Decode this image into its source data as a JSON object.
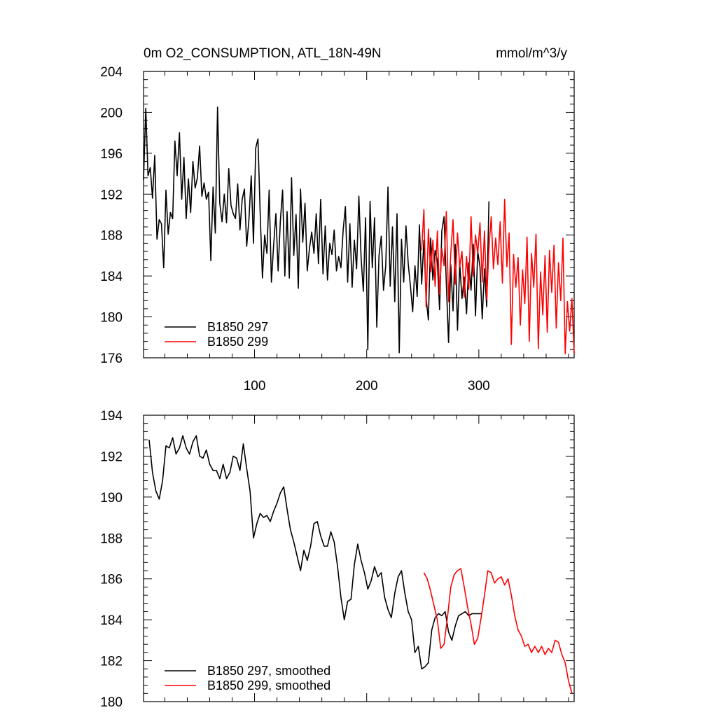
{
  "colors": {
    "series_297": "#000000",
    "series_299": "#ff0000"
  },
  "chart_data": [
    {
      "type": "line",
      "title": "0m O2_CONSUMPTION, ATL_18N-49N",
      "units": "mmol/m^3/y",
      "xlim": [
        1,
        385
      ],
      "ylim": [
        176,
        204
      ],
      "xticks": [
        100,
        200,
        300
      ],
      "xtick_labels": [
        "100",
        "200",
        "300"
      ],
      "yticks": [
        176,
        180,
        184,
        188,
        192,
        196,
        200,
        204
      ],
      "ytick_labels": [
        "176",
        "180",
        "184",
        "188",
        "192",
        "196",
        "200",
        "204"
      ],
      "grid": false,
      "legend_position": "bottom-left",
      "series": [
        {
          "name": "B1850 297",
          "color": "#000000",
          "x": [
            1,
            3,
            5,
            7,
            9,
            11,
            13,
            15,
            17,
            19,
            21,
            23,
            25,
            27,
            29,
            31,
            33,
            35,
            37,
            39,
            41,
            43,
            45,
            47,
            49,
            51,
            53,
            55,
            57,
            59,
            61,
            63,
            65,
            67,
            69,
            71,
            73,
            75,
            77,
            79,
            81,
            83,
            85,
            87,
            89,
            91,
            93,
            95,
            97,
            99,
            101,
            103,
            105,
            107,
            109,
            111,
            113,
            115,
            117,
            119,
            121,
            123,
            125,
            127,
            129,
            131,
            133,
            135,
            137,
            139,
            141,
            143,
            145,
            147,
            149,
            151,
            153,
            155,
            157,
            159,
            161,
            163,
            165,
            167,
            169,
            171,
            173,
            175,
            177,
            179,
            181,
            183,
            185,
            187,
            189,
            191,
            193,
            195,
            197,
            199,
            201,
            203,
            205,
            207,
            209,
            211,
            213,
            215,
            217,
            219,
            221,
            223,
            225,
            227,
            229,
            231,
            233,
            235,
            237,
            239,
            241,
            243,
            245,
            247,
            249,
            251,
            253,
            255,
            257,
            259,
            261,
            263,
            265,
            267,
            269,
            271,
            273,
            275,
            277,
            279,
            281,
            283,
            285,
            287,
            289,
            291,
            293,
            295,
            297,
            299,
            301,
            303,
            305,
            307,
            309
          ],
          "values": [
            193.4,
            200.4,
            193.8,
            194.6,
            191.6,
            195.8,
            187.6,
            189.5,
            189.1,
            184.8,
            192.4,
            188.1,
            190.2,
            189.6,
            197.2,
            193.8,
            198.0,
            191.5,
            195.6,
            189.6,
            193.5,
            190.2,
            195.2,
            192.6,
            193.6,
            196.7,
            191.8,
            193.1,
            191.5,
            192.2,
            185.5,
            192.7,
            188.2,
            200.5,
            191.1,
            189.3,
            192.0,
            189.2,
            194.5,
            190.9,
            190.1,
            189.6,
            193.0,
            188.5,
            191.5,
            192.5,
            186.9,
            189.5,
            193.8,
            187.2,
            196.5,
            197.4,
            190.1,
            183.8,
            188.0,
            186.2,
            192.4,
            183.4,
            187.0,
            190.1,
            184.5,
            189.4,
            192.4,
            184.0,
            190.3,
            183.8,
            193.6,
            186.0,
            190.0,
            182.8,
            192.5,
            187.3,
            191.1,
            184.5,
            186.7,
            188.3,
            186.2,
            190.1,
            185.2,
            191.5,
            184.2,
            188.9,
            183.6,
            187.2,
            186.1,
            188.5,
            184.5,
            185.9,
            184.8,
            188.5,
            190.8,
            183.4,
            189.1,
            182.9,
            187.5,
            184.7,
            191.8,
            185.8,
            182.5,
            189.7,
            176.8,
            191.3,
            184.8,
            189.7,
            179.0,
            186.0,
            187.9,
            182.6,
            185.0,
            192.7,
            183.0,
            188.8,
            181.5,
            190.1,
            176.5,
            187.6,
            183.4,
            188.9,
            185.2,
            183.0,
            180.5,
            185.0,
            182.0,
            189.0,
            183.2,
            187.5,
            181.8,
            179.7,
            187.7,
            183.6,
            186.5,
            185.5,
            180.7,
            188.4,
            189.8,
            183.3,
            177.5,
            185.1,
            180.6,
            187.1,
            178.7,
            185.2,
            181.8,
            183.9,
            180.3,
            185.3,
            182.6,
            187.1,
            180.1,
            186.4,
            184.9,
            179.8,
            184.7,
            181.0,
            191.3
          ]
        },
        {
          "name": "B1850 299",
          "color": "#ff0000",
          "x": [
            249,
            251,
            253,
            255,
            257,
            259,
            261,
            263,
            265,
            267,
            269,
            271,
            273,
            275,
            277,
            279,
            281,
            283,
            285,
            287,
            289,
            291,
            293,
            295,
            297,
            299,
            301,
            303,
            305,
            307,
            309,
            311,
            313,
            315,
            317,
            319,
            321,
            323,
            325,
            327,
            329,
            331,
            333,
            335,
            337,
            339,
            341,
            343,
            345,
            347,
            349,
            351,
            353,
            355,
            357,
            359,
            361,
            363,
            365,
            367,
            369,
            371,
            373,
            375,
            377,
            379,
            381,
            383,
            385
          ],
          "values": [
            186.5,
            190.5,
            181.0,
            188.6,
            184.4,
            187.5,
            183.0,
            188.4,
            182.2,
            186.7,
            185.0,
            190.3,
            181.5,
            186.2,
            189.5,
            183.2,
            188.2,
            184.9,
            186.4,
            181.9,
            185.9,
            182.7,
            189.8,
            184.0,
            188.0,
            186.2,
            189.2,
            183.4,
            188.4,
            181.7,
            186.7,
            189.8,
            184.7,
            187.7,
            185.1,
            189.3,
            183.3,
            191.5,
            184.9,
            188.2,
            177.3,
            186.1,
            182.9,
            185.8,
            179.2,
            184.6,
            181.3,
            187.8,
            177.6,
            186.2,
            182.9,
            188.1,
            176.9,
            184.4,
            180.2,
            186.0,
            178.5,
            186.5,
            182.4,
            187.0,
            178.9,
            185.3,
            181.6,
            187.7,
            176.4,
            181.5,
            178.6,
            181.8,
            176.4
          ]
        }
      ]
    },
    {
      "type": "line",
      "xlim": [
        1,
        385
      ],
      "ylim": [
        180,
        194
      ],
      "xticks": [
        100,
        200,
        300
      ],
      "xtick_labels": [],
      "yticks": [
        180,
        182,
        184,
        186,
        188,
        190,
        192,
        194
      ],
      "ytick_labels": [
        "180",
        "182",
        "184",
        "186",
        "188",
        "190",
        "192",
        "194"
      ],
      "grid": false,
      "legend_position": "bottom-left",
      "series": [
        {
          "name": "B1850 297, smoothed",
          "color": "#000000",
          "x": [
            6,
            9,
            12,
            15,
            18,
            21,
            24,
            27,
            30,
            33,
            36,
            39,
            42,
            45,
            48,
            51,
            54,
            57,
            60,
            63,
            66,
            69,
            72,
            75,
            78,
            81,
            84,
            87,
            90,
            93,
            96,
            99,
            102,
            105,
            108,
            111,
            114,
            117,
            120,
            123,
            126,
            129,
            132,
            135,
            138,
            141,
            144,
            147,
            150,
            153,
            156,
            159,
            162,
            165,
            168,
            171,
            174,
            177,
            180,
            183,
            186,
            189,
            192,
            195,
            198,
            201,
            204,
            207,
            210,
            213,
            216,
            219,
            222,
            225,
            228,
            231,
            234,
            237,
            240,
            243,
            246,
            249,
            252,
            255,
            258,
            261,
            264,
            267,
            270,
            273,
            276,
            279,
            282,
            285,
            288,
            291,
            294,
            297,
            300,
            303
          ],
          "values": [
            192.8,
            191.2,
            190.3,
            189.9,
            190.8,
            192.5,
            192.4,
            192.9,
            192.1,
            192.4,
            193.0,
            192.4,
            192.1,
            192.7,
            193.0,
            192.0,
            191.9,
            192.3,
            191.6,
            191.3,
            191.3,
            190.9,
            191.6,
            190.9,
            191.2,
            192.0,
            191.9,
            191.3,
            192.6,
            191.4,
            190.3,
            188.0,
            188.7,
            189.2,
            189.0,
            189.1,
            188.8,
            189.3,
            189.7,
            190.2,
            190.5,
            189.4,
            188.4,
            187.8,
            187.1,
            186.4,
            187.4,
            186.9,
            187.6,
            188.7,
            188.8,
            188.1,
            187.6,
            187.6,
            188.3,
            187.8,
            186.6,
            185.1,
            184.0,
            184.9,
            185.0,
            186.7,
            187.7,
            186.9,
            186.3,
            185.5,
            185.9,
            186.6,
            186.1,
            186.3,
            185.1,
            184.5,
            184.1,
            185.3,
            186.1,
            186.4,
            185.3,
            184.4,
            184.0,
            182.4,
            182.7,
            181.6,
            181.7,
            181.9,
            183.5,
            184.1,
            184.3,
            184.2,
            184.4,
            183.4,
            183.0,
            183.7,
            184.2,
            184.3,
            184.4,
            184.2,
            184.3,
            184.3,
            184.3,
            184.3
          ]
        },
        {
          "name": "B1850 299, smoothed",
          "color": "#ff0000",
          "x": [
            251,
            254,
            257,
            260,
            263,
            266,
            269,
            272,
            275,
            278,
            281,
            284,
            287,
            290,
            293,
            296,
            299,
            302,
            305,
            308,
            311,
            314,
            317,
            320,
            323,
            326,
            329,
            332,
            335,
            338,
            341,
            344,
            347,
            350,
            353,
            356,
            359,
            362,
            365,
            368,
            371,
            374,
            377,
            380,
            383
          ],
          "values": [
            186.3,
            186.0,
            185.4,
            184.7,
            184.0,
            182.6,
            182.8,
            184.1,
            185.6,
            186.2,
            186.4,
            186.5,
            185.6,
            184.6,
            183.8,
            182.8,
            183.1,
            184.1,
            185.2,
            186.4,
            186.3,
            185.8,
            186.0,
            186.1,
            185.7,
            186.0,
            185.2,
            184.2,
            183.5,
            183.2,
            182.7,
            182.8,
            182.4,
            182.7,
            182.4,
            182.7,
            182.3,
            182.6,
            182.4,
            183.0,
            182.9,
            182.3,
            181.9,
            181.0,
            180.4
          ]
        }
      ]
    }
  ]
}
